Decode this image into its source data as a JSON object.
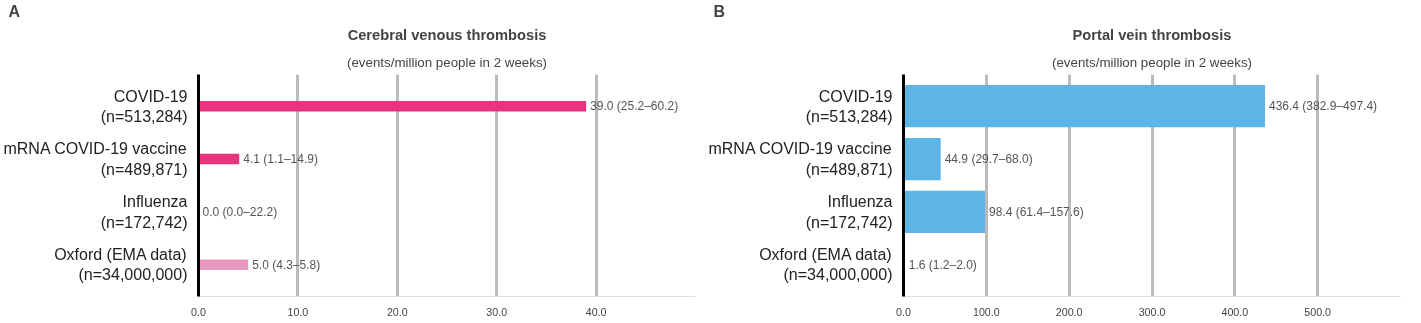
{
  "chart_data": [
    {
      "type": "bar",
      "orientation": "horizontal",
      "title": "Cerebral venous thrombosis",
      "subtitle": "(events/million people in 2 weeks)",
      "annotations": [
        "A"
      ],
      "categories": [
        "COVID-19\n(n=513,284)",
        "mRNA COVID-19 vaccine\n(n=489,871)",
        "Influenza\n(n=172,742)",
        "Oxford (EMA data)\n(n=34,000,000)"
      ],
      "values": [
        39.0,
        4.1,
        0.0,
        5.0
      ],
      "colors": [
        "#e8337f",
        "#e8337f",
        "#e8337f",
        "#e597c0"
      ],
      "value_labels": [
        "39.0 (25.2–60.2)",
        "4.1 (1.1–14.9)",
        "0.0 (0.0–22.2)",
        "5.0 (4.3–5.8)"
      ],
      "xlim": [
        0,
        50
      ],
      "xticks": [
        {
          "value": 0,
          "label": "0.0"
        },
        {
          "value": 10,
          "label": "10.0"
        },
        {
          "value": 20,
          "label": "20.0"
        },
        {
          "value": 30,
          "label": "30.0"
        },
        {
          "value": 40,
          "label": "40.0"
        }
      ],
      "grid": "x"
    },
    {
      "type": "bar",
      "orientation": "horizontal",
      "title": "Portal vein thrombosis",
      "subtitle": "(events/million people in 2 weeks)",
      "annotations": [
        "B"
      ],
      "categories": [
        "COVID-19\n(n=513,284)",
        "mRNA COVID-19 vaccine\n(n=489,871)",
        "Influenza\n(n=172,742)",
        "Oxford (EMA data)\n(n=34,000,000)"
      ],
      "values": [
        436.4,
        44.9,
        98.4,
        1.6
      ],
      "colors": [
        "#5cb5e6",
        "#5cb5e6",
        "#5cb5e6",
        "#5cb5e6"
      ],
      "value_labels": [
        "436.4 (382.9–497.4)",
        "44.9 (29.7–68.0)",
        "98.4 (61.4–157.6)",
        "1.6 (1.2–2.0)"
      ],
      "xlim": [
        0,
        600
      ],
      "xticks": [
        {
          "value": 0,
          "label": "0.0"
        },
        {
          "value": 100,
          "label": "100.0"
        },
        {
          "value": 200,
          "label": "200.0"
        },
        {
          "value": 300,
          "label": "300.0"
        },
        {
          "value": 400,
          "label": "400.0"
        },
        {
          "value": 500,
          "label": "500.0"
        }
      ],
      "grid": "x"
    }
  ]
}
